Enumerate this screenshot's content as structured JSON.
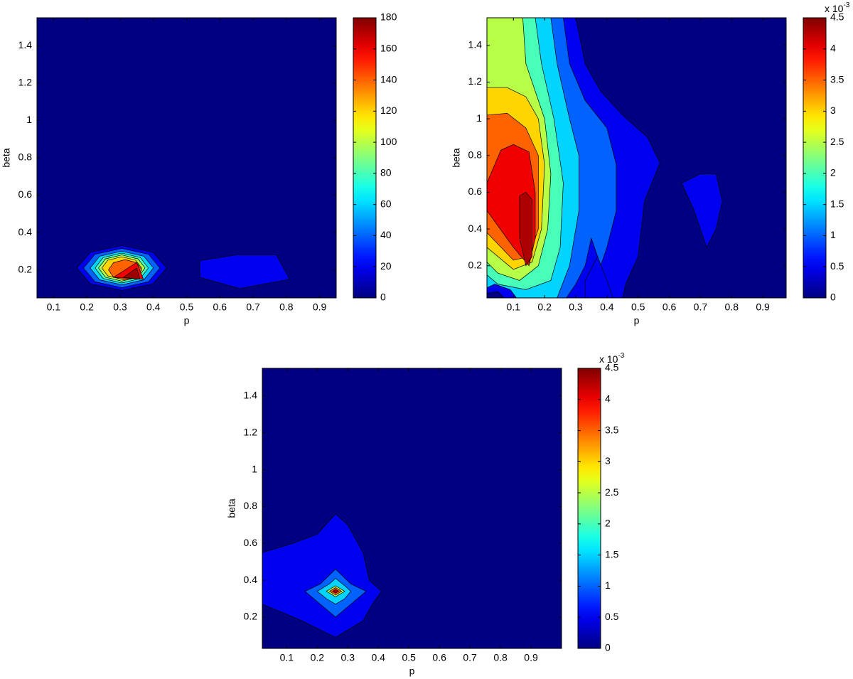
{
  "chart_data": [
    {
      "type": "contour",
      "xlabel": "p",
      "ylabel": "beta",
      "xlim": [
        0.05,
        0.95
      ],
      "ylim": [
        0.05,
        1.55
      ],
      "xticks": [
        0.1,
        0.2,
        0.3,
        0.4,
        0.5,
        0.6,
        0.7,
        0.8,
        0.9
      ],
      "yticks": [
        0.2,
        0.4,
        0.6,
        0.8,
        1,
        1.2,
        1.4
      ],
      "colorbar": {
        "clim": [
          0,
          180
        ],
        "ticks": [
          0,
          20,
          40,
          60,
          80,
          100,
          120,
          140,
          160,
          180
        ]
      },
      "background_level": 0,
      "regions": [
        {
          "level": 20,
          "points": [
            [
              0.17,
              0.21
            ],
            [
              0.2105,
              0.294
            ],
            [
              0.305,
              0.33
            ],
            [
              0.3995,
              0.294
            ],
            [
              0.44,
              0.21
            ],
            [
              0.3995,
              0.126
            ],
            [
              0.305,
              0.09
            ],
            [
              0.2105,
              0.126
            ]
          ]
        },
        {
          "level": 20,
          "points": [
            [
              0.54,
              0.25
            ],
            [
              0.65,
              0.28
            ],
            [
              0.77,
              0.28
            ],
            [
              0.81,
              0.15
            ],
            [
              0.66,
              0.1
            ],
            [
              0.54,
              0.16
            ]
          ]
        },
        {
          "level": 40,
          "points": [
            [
              0.19,
              0.21
            ],
            [
              0.2245,
              0.2835
            ],
            [
              0.305,
              0.315
            ],
            [
              0.3855,
              0.2835
            ],
            [
              0.42,
              0.21
            ],
            [
              0.3855,
              0.1365
            ],
            [
              0.305,
              0.105
            ],
            [
              0.2245,
              0.1365
            ]
          ]
        },
        {
          "level": 60,
          "points": [
            [
              0.21,
              0.21
            ],
            [
              0.2385,
              0.273
            ],
            [
              0.305,
              0.3
            ],
            [
              0.3715,
              0.273
            ],
            [
              0.4,
              0.21
            ],
            [
              0.3715,
              0.147
            ],
            [
              0.305,
              0.12
            ],
            [
              0.2385,
              0.147
            ]
          ]
        },
        {
          "level": 80,
          "points": [
            [
              0.225,
              0.21
            ],
            [
              0.249,
              0.266
            ],
            [
              0.305,
              0.29
            ],
            [
              0.361,
              0.266
            ],
            [
              0.385,
              0.21
            ],
            [
              0.361,
              0.154
            ],
            [
              0.305,
              0.13
            ],
            [
              0.249,
              0.154
            ]
          ]
        },
        {
          "level": 100,
          "points": [
            [
              0.235,
              0.21
            ],
            [
              0.256,
              0.259
            ],
            [
              0.305,
              0.28
            ],
            [
              0.354,
              0.259
            ],
            [
              0.375,
              0.21
            ],
            [
              0.354,
              0.161
            ],
            [
              0.305,
              0.14
            ],
            [
              0.256,
              0.161
            ]
          ]
        },
        {
          "level": 120,
          "points": [
            [
              0.245,
              0.21
            ],
            [
              0.263,
              0.252
            ],
            [
              0.305,
              0.27
            ],
            [
              0.347,
              0.252
            ],
            [
              0.365,
              0.21
            ],
            [
              0.347,
              0.168
            ],
            [
              0.305,
              0.15
            ],
            [
              0.263,
              0.168
            ]
          ]
        },
        {
          "level": 140,
          "points": [
            [
              0.265,
              0.2
            ],
            [
              0.28,
              0.2385
            ],
            [
              0.315,
              0.255
            ],
            [
              0.35,
              0.2385
            ],
            [
              0.365,
              0.2
            ],
            [
              0.35,
              0.1615
            ],
            [
              0.315,
              0.145
            ],
            [
              0.28,
              0.1615
            ]
          ]
        },
        {
          "level": 160,
          "points": [
            [
              0.28,
              0.16
            ],
            [
              0.35,
              0.24
            ],
            [
              0.37,
              0.15
            ]
          ]
        },
        {
          "level": 175,
          "points": [
            [
              0.31,
              0.16
            ],
            [
              0.35,
              0.21
            ],
            [
              0.36,
              0.15
            ]
          ]
        }
      ]
    },
    {
      "type": "contour",
      "xlabel": "p",
      "ylabel": "beta",
      "xlim": [
        0.015,
        0.975
      ],
      "ylim": [
        0.025,
        1.55
      ],
      "xticks": [
        0.1,
        0.2,
        0.3,
        0.4,
        0.5,
        0.6,
        0.7,
        0.8,
        0.9
      ],
      "yticks": [
        0.2,
        0.4,
        0.6,
        0.8,
        1,
        1.2,
        1.4
      ],
      "colorbar": {
        "clim": [
          0,
          4.5
        ],
        "ticks": [
          0,
          0.5,
          1,
          1.5,
          2,
          2.5,
          3,
          3.5,
          4,
          4.5
        ],
        "scale": "x 10",
        "scale_exponent": "-3"
      },
      "background_level": 0,
      "regions": [
        {
          "level": 0.5,
          "points": [
            [
              0.015,
              1.55
            ],
            [
              0.3,
              1.55
            ],
            [
              0.33,
              1.3
            ],
            [
              0.38,
              1.15
            ],
            [
              0.45,
              1.02
            ],
            [
              0.53,
              0.9
            ],
            [
              0.57,
              0.76
            ],
            [
              0.52,
              0.55
            ],
            [
              0.5,
              0.25
            ],
            [
              0.46,
              0.1
            ],
            [
              0.45,
              0.025
            ],
            [
              0.015,
              0.025
            ]
          ]
        },
        {
          "level": 0.5,
          "points": [
            [
              0.64,
              0.65
            ],
            [
              0.7,
              0.7
            ],
            [
              0.75,
              0.7
            ],
            [
              0.77,
              0.55
            ],
            [
              0.75,
              0.4
            ],
            [
              0.72,
              0.3
            ],
            [
              0.68,
              0.5
            ]
          ]
        },
        {
          "level": 1,
          "points": [
            [
              0.015,
              1.55
            ],
            [
              0.26,
              1.55
            ],
            [
              0.28,
              1.3
            ],
            [
              0.33,
              1.1
            ],
            [
              0.4,
              0.95
            ],
            [
              0.43,
              0.75
            ],
            [
              0.43,
              0.5
            ],
            [
              0.4,
              0.3
            ],
            [
              0.38,
              0.2
            ],
            [
              0.35,
              0.35
            ],
            [
              0.33,
              0.2
            ],
            [
              0.3,
              0.1
            ],
            [
              0.27,
              0.025
            ],
            [
              0.015,
              0.025
            ]
          ]
        },
        {
          "level": 1.5,
          "points": [
            [
              0.015,
              1.55
            ],
            [
              0.22,
              1.55
            ],
            [
              0.24,
              1.3
            ],
            [
              0.28,
              1.0
            ],
            [
              0.31,
              0.8
            ],
            [
              0.31,
              0.5
            ],
            [
              0.28,
              0.2
            ],
            [
              0.24,
              0.025
            ],
            [
              0.015,
              0.025
            ]
          ]
        },
        {
          "level": 2,
          "points": [
            [
              0.015,
              1.55
            ],
            [
              0.17,
              1.55
            ],
            [
              0.19,
              1.3
            ],
            [
              0.23,
              1.0
            ],
            [
              0.26,
              0.65
            ],
            [
              0.25,
              0.3
            ],
            [
              0.22,
              0.12
            ],
            [
              0.14,
              0.07
            ],
            [
              0.05,
              0.1
            ],
            [
              0.015,
              0.15
            ]
          ]
        },
        {
          "level": 2.5,
          "points": [
            [
              0.015,
              1.55
            ],
            [
              0.13,
              1.55
            ],
            [
              0.14,
              1.3
            ],
            [
              0.2,
              1.0
            ],
            [
              0.22,
              0.7
            ],
            [
              0.21,
              0.4
            ],
            [
              0.18,
              0.2
            ],
            [
              0.12,
              0.12
            ],
            [
              0.05,
              0.16
            ],
            [
              0.015,
              0.22
            ]
          ]
        },
        {
          "level": 3,
          "points": [
            [
              0.015,
              1.17
            ],
            [
              0.08,
              1.17
            ],
            [
              0.14,
              1.12
            ],
            [
              0.18,
              1.0
            ],
            [
              0.2,
              0.75
            ],
            [
              0.19,
              0.4
            ],
            [
              0.16,
              0.22
            ],
            [
              0.1,
              0.18
            ],
            [
              0.015,
              0.3
            ]
          ]
        },
        {
          "level": 3.5,
          "points": [
            [
              0.015,
              1.02
            ],
            [
              0.08,
              1.03
            ],
            [
              0.14,
              0.95
            ],
            [
              0.18,
              0.8
            ],
            [
              0.18,
              0.4
            ],
            [
              0.15,
              0.25
            ],
            [
              0.1,
              0.23
            ],
            [
              0.015,
              0.38
            ]
          ]
        },
        {
          "level": 4,
          "points": [
            [
              0.015,
              0.65
            ],
            [
              0.06,
              0.83
            ],
            [
              0.1,
              0.86
            ],
            [
              0.15,
              0.82
            ],
            [
              0.17,
              0.6
            ],
            [
              0.17,
              0.35
            ],
            [
              0.15,
              0.2
            ],
            [
              0.1,
              0.3
            ],
            [
              0.015,
              0.5
            ]
          ]
        },
        {
          "level": 4.3,
          "points": [
            [
              0.12,
              0.58
            ],
            [
              0.14,
              0.6
            ],
            [
              0.16,
              0.56
            ],
            [
              0.16,
              0.25
            ],
            [
              0.14,
              0.2
            ],
            [
              0.12,
              0.35
            ]
          ]
        },
        {
          "level": 0.5,
          "points": [
            [
              0.015,
              0.025
            ],
            [
              0.015,
              0.08
            ],
            [
              0.04,
              0.1
            ],
            [
              0.09,
              0.07
            ],
            [
              0.11,
              0.025
            ]
          ]
        },
        {
          "level": 0,
          "points": [
            [
              0.015,
              0.025
            ],
            [
              0.015,
              0.05
            ],
            [
              0.05,
              0.06
            ],
            [
              0.07,
              0.025
            ]
          ]
        },
        {
          "level": 0.5,
          "points": [
            [
              0.33,
              0.025
            ],
            [
              0.33,
              0.12
            ],
            [
              0.37,
              0.25
            ],
            [
              0.4,
              0.12
            ],
            [
              0.42,
              0.025
            ]
          ]
        }
      ]
    },
    {
      "type": "contour",
      "xlabel": "p",
      "ylabel": "beta",
      "xlim": [
        0.02,
        1.0
      ],
      "ylim": [
        0.03,
        1.55
      ],
      "xticks": [
        0.1,
        0.2,
        0.3,
        0.4,
        0.5,
        0.6,
        0.7,
        0.8,
        0.9
      ],
      "yticks": [
        0.2,
        0.4,
        0.6,
        0.8,
        1,
        1.2,
        1.4
      ],
      "colorbar": {
        "clim": [
          0,
          4.5
        ],
        "ticks": [
          0,
          0.5,
          1,
          1.5,
          2,
          2.5,
          3,
          3.5,
          4,
          4.5
        ],
        "scale": "x 10",
        "scale_exponent": "-3"
      },
      "background_level": 0,
      "regions": [
        {
          "level": 0.5,
          "points": [
            [
              0.02,
              0.55
            ],
            [
              0.12,
              0.6
            ],
            [
              0.2,
              0.65
            ],
            [
              0.26,
              0.76
            ],
            [
              0.3,
              0.7
            ],
            [
              0.35,
              0.55
            ],
            [
              0.37,
              0.4
            ],
            [
              0.41,
              0.34
            ],
            [
              0.38,
              0.27
            ],
            [
              0.35,
              0.18
            ],
            [
              0.26,
              0.09
            ],
            [
              0.15,
              0.18
            ],
            [
              0.02,
              0.27
            ]
          ]
        },
        {
          "level": 1,
          "points": [
            [
              0.16,
              0.34
            ],
            [
              0.21,
              0.38
            ],
            [
              0.26,
              0.46
            ],
            [
              0.31,
              0.38
            ],
            [
              0.36,
              0.34
            ],
            [
              0.31,
              0.27
            ],
            [
              0.26,
              0.2
            ],
            [
              0.21,
              0.27
            ]
          ]
        },
        {
          "level": 1.5,
          "points": [
            [
              0.2,
              0.34
            ],
            [
              0.24,
              0.38
            ],
            [
              0.26,
              0.41
            ],
            [
              0.29,
              0.37
            ],
            [
              0.31,
              0.34
            ],
            [
              0.29,
              0.3
            ],
            [
              0.26,
              0.27
            ],
            [
              0.23,
              0.3
            ]
          ]
        },
        {
          "level": 2.5,
          "points": [
            [
              0.23,
              0.34
            ],
            [
              0.26,
              0.37
            ],
            [
              0.29,
              0.34
            ],
            [
              0.26,
              0.31
            ]
          ]
        },
        {
          "level": 3.5,
          "points": [
            [
              0.24,
              0.34
            ],
            [
              0.26,
              0.36
            ],
            [
              0.28,
              0.34
            ],
            [
              0.26,
              0.32
            ]
          ]
        },
        {
          "level": 4.3,
          "points": [
            [
              0.25,
              0.34
            ],
            [
              0.26,
              0.35
            ],
            [
              0.27,
              0.34
            ],
            [
              0.26,
              0.33
            ]
          ]
        }
      ]
    }
  ]
}
